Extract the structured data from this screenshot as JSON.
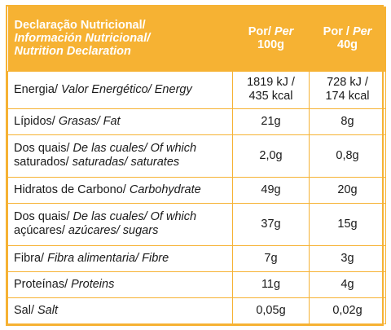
{
  "header": {
    "label_line1": "Declaração Nutricional/",
    "label_line2": "Información Nutricional/",
    "label_line3": "Nutrition Declaration",
    "col1_line1_a": "Por/ ",
    "col1_line1_b": "Per",
    "col1_line2": "100g",
    "col2_line1_a": "Por / ",
    "col2_line1_b": "Per",
    "col2_line2": "40g"
  },
  "rows": [
    {
      "label_pt": "Energia/ ",
      "label_es_en": "Valor Energético/ Energy",
      "v100_line1": "1819 kJ /",
      "v100_line2": "435 kcal",
      "v40_line1": "728 kJ /",
      "v40_line2": "174 kcal"
    },
    {
      "label_pt": "Lípidos/ ",
      "label_es_en": "Grasas/ Fat",
      "v100": "21g",
      "v40": "8g"
    },
    {
      "label_pt": "Dos quais/ ",
      "label_line1_it": "De las cuales/ Of which",
      "label_line2_pt": "saturados/ ",
      "label_line2_it": "saturadas/ saturates",
      "v100": "2,0g",
      "v40": "0,8g"
    },
    {
      "label_pt": "Hidratos de Carbono/ ",
      "label_es_en": "Carbohydrate",
      "v100": "49g",
      "v40": "20g"
    },
    {
      "label_pt": "Dos quais/ ",
      "label_line1_it": "De las cuales/ Of which",
      "label_line2_pt": "açúcares/ ",
      "label_line2_it": "azúcares/ sugars",
      "v100": "37g",
      "v40": "15g"
    },
    {
      "label_pt": "Fibra/ ",
      "label_es_en": "Fibra alimentaria/ Fibre",
      "v100": "7g",
      "v40": "3g"
    },
    {
      "label_pt": "Proteínas/ ",
      "label_es_en": "Proteins",
      "v100": "11g",
      "v40": "4g"
    },
    {
      "label_pt": "Sal/ ",
      "label_es_en": "Salt",
      "v100": "0,05g",
      "v40": "0,02g"
    }
  ],
  "colors": {
    "accent": "#f6b233",
    "header_text": "#ffffff",
    "body_text": "#1a1a1a"
  }
}
